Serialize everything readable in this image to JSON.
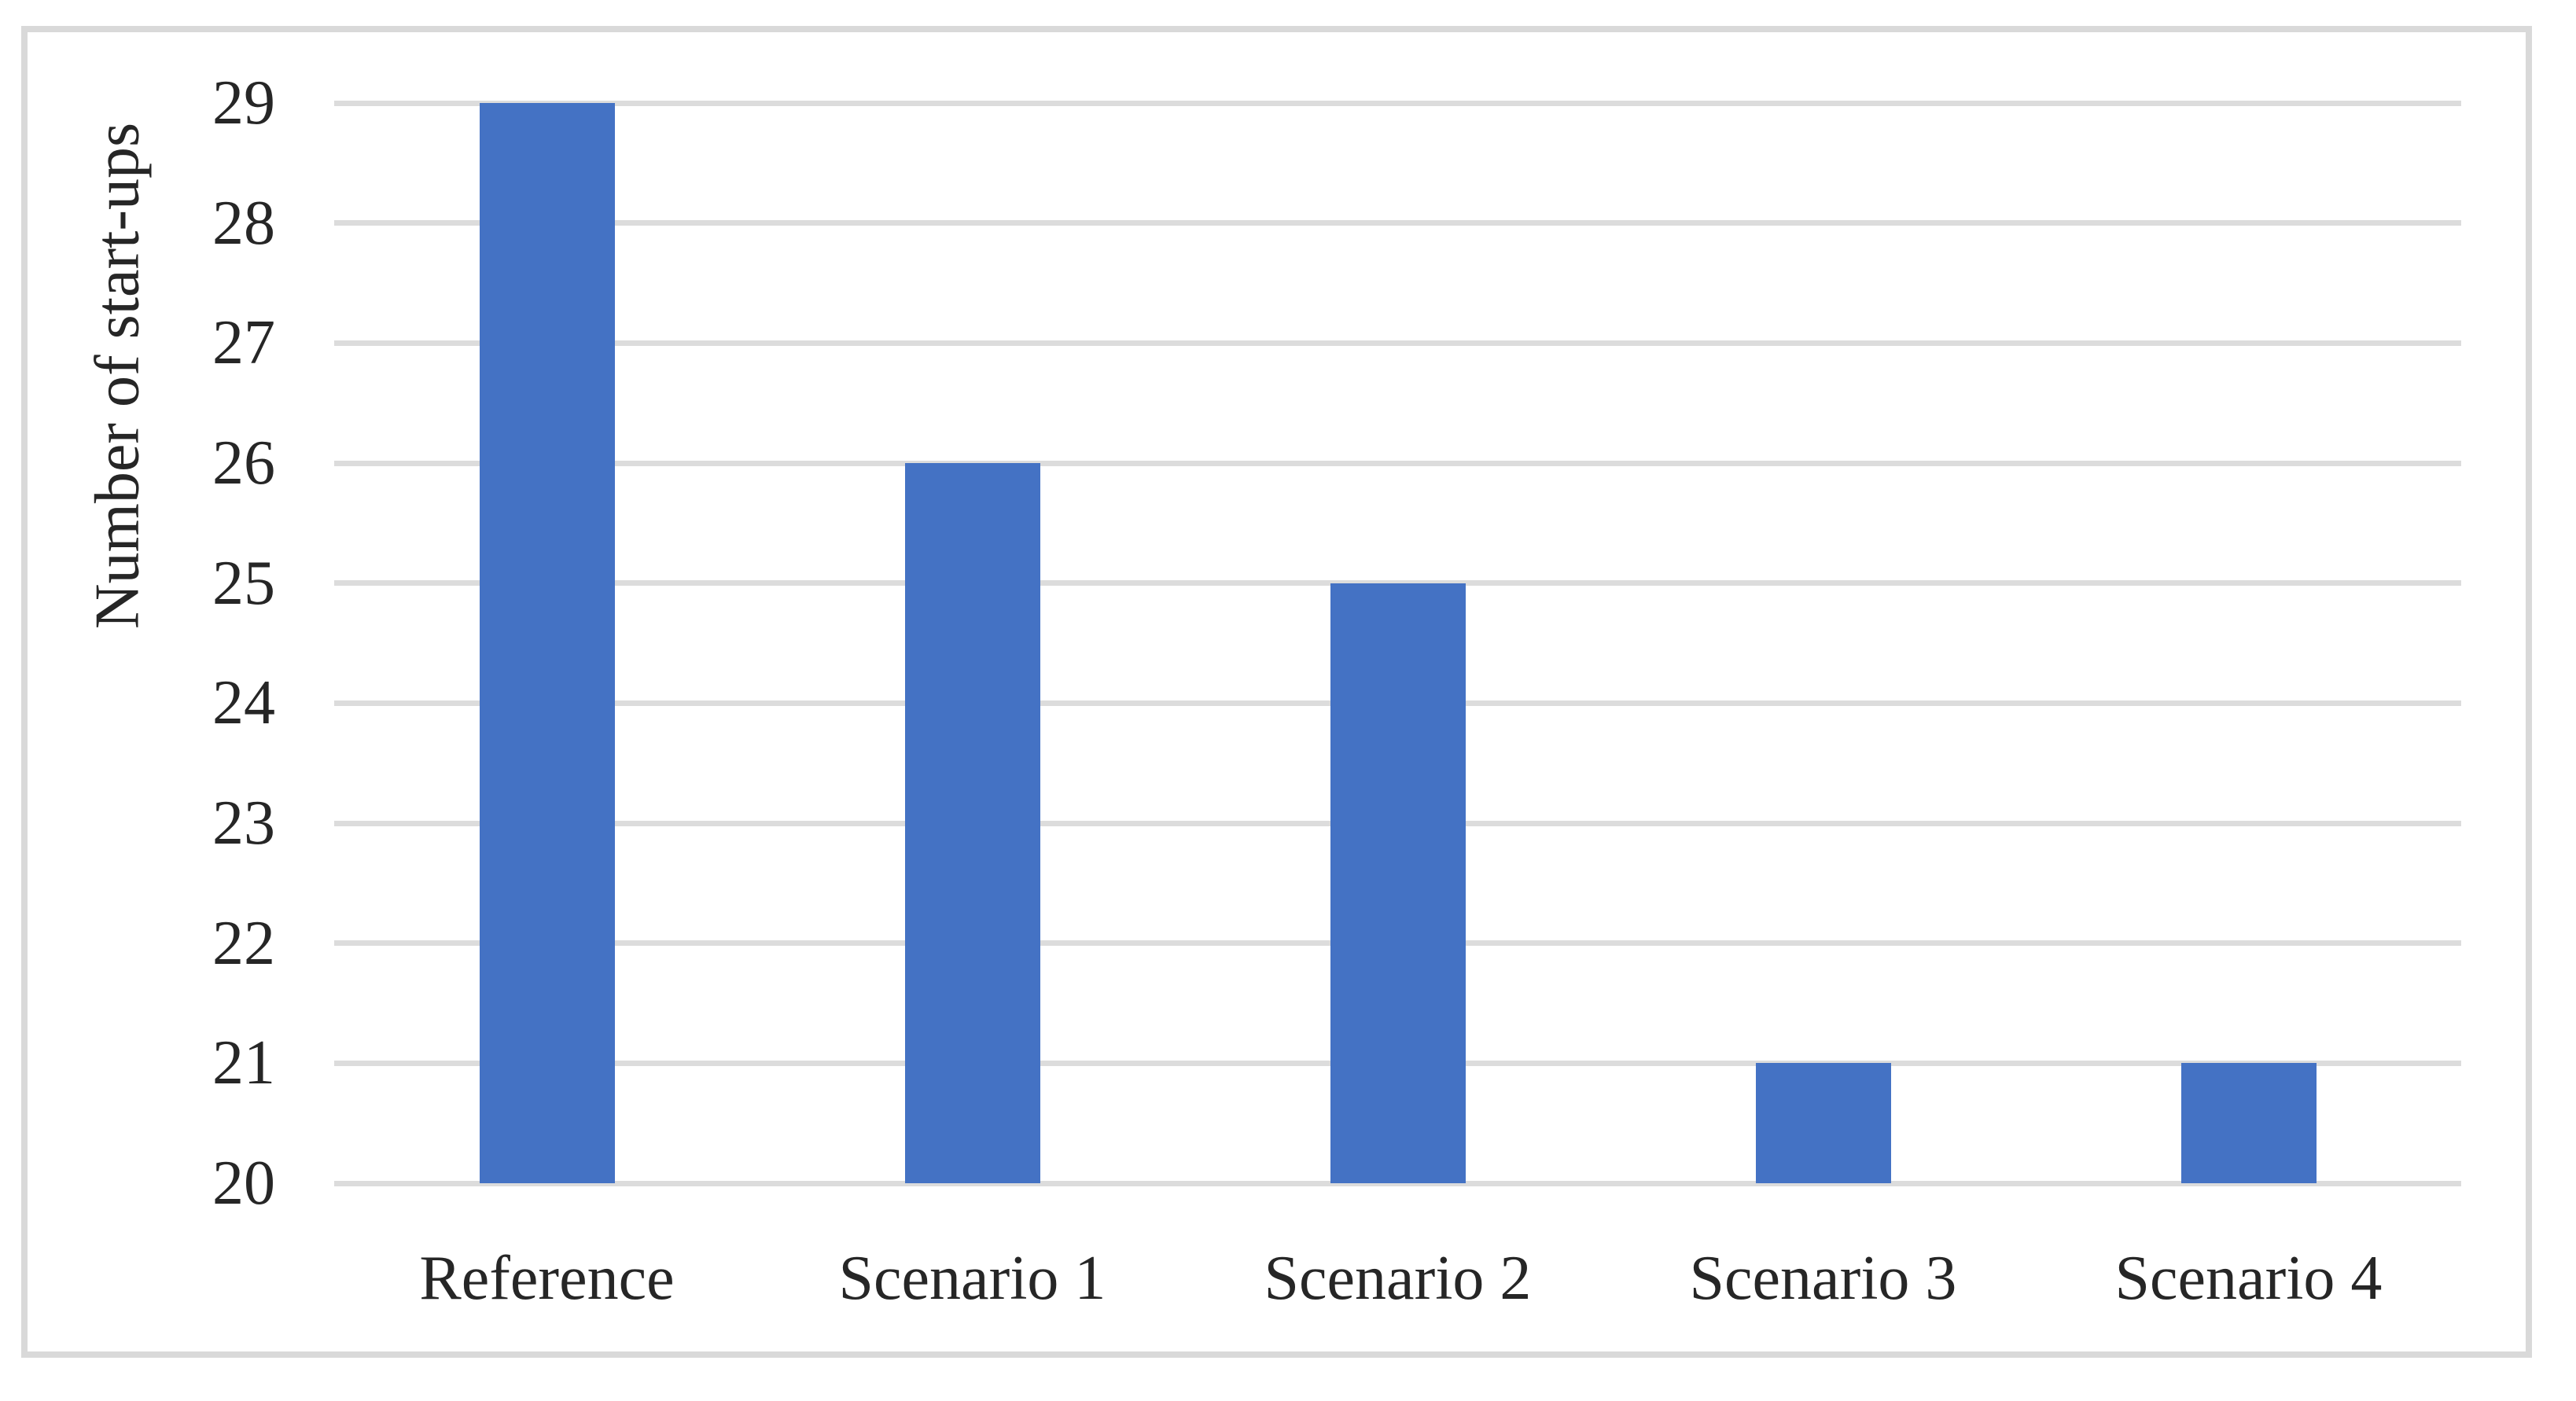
{
  "figure": {
    "frame_color": "#d9d9d9",
    "background_color": "#ffffff"
  },
  "chart_data": {
    "type": "bar",
    "categories": [
      "Reference",
      "Scenario 1",
      "Scenario 2",
      "Scenario 3",
      "Scenario 4"
    ],
    "values": [
      29,
      26,
      25,
      21,
      21
    ],
    "title": "",
    "xlabel": "",
    "ylabel": "Number of start-ups",
    "ylim": [
      20,
      29
    ],
    "ytick_step": 1,
    "yticks": [
      20,
      21,
      22,
      23,
      24,
      25,
      26,
      27,
      28,
      29
    ],
    "bar_color": "#4472c4",
    "gridline_color": "#dcdcdc",
    "axis_text_color": "#262626",
    "grid": "horizontal",
    "legend_position": "none",
    "bars_baseline_value": 20
  }
}
